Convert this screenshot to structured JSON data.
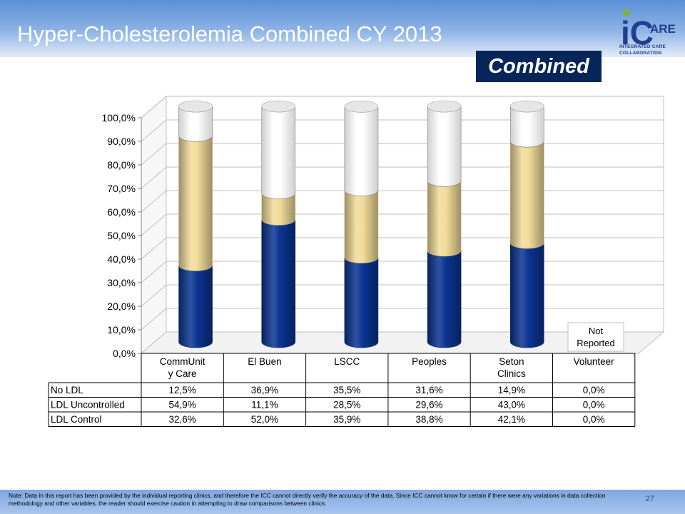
{
  "slide": {
    "title": "Hyper-Cholesterolemia Combined CY 2013",
    "badge": "Combined",
    "logo_letters": "iC",
    "logo_word": "ARE",
    "logo_line1": "INTEGRATED CARE",
    "logo_line2": "COLLABORATION",
    "note": "Note: Data in this report has been provided by the individual reporting clinics, and therefore the ICC cannot directly verify the accuracy of the data.  Since ICC cannot know for certain if there were any variations in data collection methodology and other variables, the reader should exercise caution in attempting to draw comparisons between clinics.",
    "page_number": "27"
  },
  "colors": {
    "ldl_control": "#0b3591",
    "ldl_uncontrolled": "#f2dc9a",
    "no_ldl": "#ffffff",
    "title_text": "#ffffff",
    "badge_bg": "#06265a"
  },
  "chart_data": {
    "type": "bar",
    "stacked": true,
    "three_d": true,
    "categories": [
      "CommUnit\ny Care",
      "El Buen",
      "LSCC",
      "Peoples",
      "Seton\nClinics",
      "Volunteer"
    ],
    "series": [
      {
        "name": "LDL Control",
        "values": [
          32.6,
          52.0,
          35.9,
          38.8,
          42.1,
          0.0
        ],
        "labels": [
          "32,6%",
          "52,0%",
          "35,9%",
          "38,8%",
          "42,1%",
          "0,0%"
        ]
      },
      {
        "name": "LDL Uncontrolled",
        "values": [
          54.9,
          11.1,
          28.5,
          29.6,
          43.0,
          0.0
        ],
        "labels": [
          "54,9%",
          "11,1%",
          "28,5%",
          "29,6%",
          "43,0%",
          "0,0%"
        ]
      },
      {
        "name": "No LDL",
        "values": [
          12.5,
          36.9,
          35.5,
          31.6,
          14.9,
          0.0
        ],
        "labels": [
          "12,5%",
          "36,9%",
          "35,5%",
          "31,6%",
          "14,9%",
          "0,0%"
        ]
      }
    ],
    "table_row_order": [
      "No LDL",
      "LDL Uncontrolled",
      "LDL Control"
    ],
    "ylim": [
      0,
      100
    ],
    "yticks": [
      "0,0%",
      "10,0%",
      "20,0%",
      "30,0%",
      "40,0%",
      "50,0%",
      "60,0%",
      "70,0%",
      "80,0%",
      "90,0%",
      "100,0%"
    ],
    "grid": true,
    "legend": "data-table-below",
    "annotation": "Not\nReported"
  }
}
